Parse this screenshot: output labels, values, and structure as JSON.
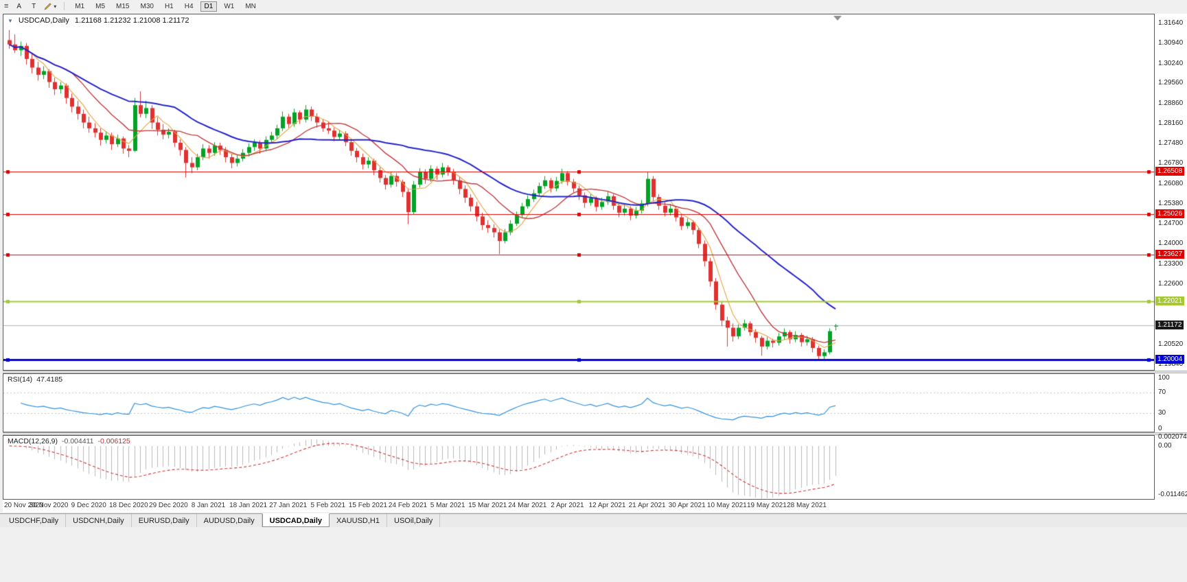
{
  "icons": {
    "menu": "≡",
    "dropdown": "▾",
    "one_click": "▼"
  },
  "toolbar": {
    "button_a": "A",
    "button_t": "T",
    "timeframes": [
      "M1",
      "M5",
      "M15",
      "M30",
      "H1",
      "H4",
      "D1",
      "W1",
      "MN"
    ],
    "active_timeframe": "D1"
  },
  "chart": {
    "symbol_title": "USDCAD,Daily",
    "ohlc_text": "1.21168 1.21232 1.21008 1.21172",
    "price_axis_labels": [
      "1.31640",
      "1.30940",
      "1.30240",
      "1.29560",
      "1.28860",
      "1.28160",
      "1.27480",
      "1.26780",
      "1.26080",
      "1.25380",
      "1.24700",
      "1.24000",
      "1.23300",
      "1.22600",
      "1.21920",
      "1.21220",
      "1.20520",
      "1.19840"
    ],
    "current_price": {
      "value": 1.21172,
      "label": "1.21172",
      "color": "#181818"
    },
    "hlines": [
      {
        "value": 1.26508,
        "label": "1.26508",
        "color": "#E00000",
        "width": 1
      },
      {
        "value": 1.25026,
        "label": "1.25026",
        "color": "#E00000",
        "width": 1
      },
      {
        "value": 1.23627,
        "label": "1.23627",
        "color": "#E00000",
        "width": 1
      },
      {
        "value": 1.22021,
        "label": "1.22021",
        "color": "#A6C832",
        "width": 2
      },
      {
        "value": 1.20004,
        "label": "1.20004",
        "color": "#0000D8",
        "width": 3
      }
    ],
    "date_labels": [
      "20 Nov 2020",
      "30 Nov 2020",
      "9 Dec 2020",
      "18 Dec 2020",
      "29 Dec 2020",
      "8 Jan 2021",
      "18 Jan 2021",
      "27 Jan 2021",
      "5 Feb 2021",
      "15 Feb 2021",
      "24 Feb 2021",
      "5 Mar 2021",
      "15 Mar 2021",
      "24 Mar 2021",
      "2 Apr 2021",
      "12 Apr 2021",
      "21 Apr 2021",
      "30 Apr 2021",
      "10 May 2021",
      "19 May 2021",
      "28 May 2021"
    ]
  },
  "rsi_panel": {
    "name_label": "RSI(14)",
    "value_label": "47.4185",
    "axis_labels": [
      {
        "text": "100",
        "value": 100
      },
      {
        "text": "70",
        "value": 70
      },
      {
        "text": "30",
        "value": 30
      },
      {
        "text": "0",
        "value": 0
      }
    ],
    "levels": [
      70,
      30
    ]
  },
  "macd_panel": {
    "name_label": "MACD(12,26,9)",
    "value1": "-0.004411",
    "value2": "-0.006125",
    "axis_labels": [
      {
        "text": "0.002074",
        "value": 0.002074
      },
      {
        "text": "0.00",
        "value": 0
      },
      {
        "text": "-0.011462",
        "value": -0.011462
      }
    ]
  },
  "tabs": {
    "items": [
      "USDCHF,Daily",
      "USDCNH,Daily",
      "EURUSD,Daily",
      "AUDUSD,Daily",
      "USDCAD,Daily",
      "XAUUSD,H1",
      "USOil,Daily"
    ],
    "active": "USDCAD,Daily"
  },
  "colors": {
    "bull": "#00A326",
    "bear": "#E03030",
    "rsi_line": "#2F8FDE",
    "rsi_level": "#C4C4C4",
    "macd_hist": "#B8B8B8",
    "macd_signal": "#D03030",
    "current_line": "#B4B4B4",
    "shift_marker": "#909090"
  },
  "chart_data": {
    "type": "candlestick",
    "symbol": "USDCAD",
    "timeframe": "Daily",
    "price_scale": {
      "max": 1.3194,
      "min": 1.1964
    },
    "x_tick_interval_bars": 7,
    "moving_averages": [
      {
        "name": "sma-fast",
        "period": 5,
        "color": "#E2A23C",
        "width": 1.1
      },
      {
        "name": "sma-mid",
        "period": 12,
        "color": "#C03A3A",
        "width": 1.4
      },
      {
        "name": "sma-slow",
        "period": 30,
        "color": "#2222C8",
        "width": 2
      }
    ],
    "indicators": {
      "rsi": {
        "period": 14,
        "last": 47.4185,
        "levels": [
          70,
          30
        ]
      },
      "macd": {
        "fast": 12,
        "slow": 26,
        "signal": 9,
        "last_macd": -0.004411,
        "last_signal": -0.006125,
        "scale_max": 0.0024,
        "scale_min": -0.0125
      }
    },
    "candles": [
      [
        1.3105,
        1.314,
        1.3075,
        1.309
      ],
      [
        1.309,
        1.3125,
        1.306,
        1.307
      ],
      [
        1.307,
        1.31,
        1.305,
        1.3085
      ],
      [
        1.3085,
        1.3095,
        1.302,
        1.304
      ],
      [
        1.304,
        1.306,
        1.299,
        1.301
      ],
      [
        1.301,
        1.303,
        1.2965,
        1.2985
      ],
      [
        1.2985,
        1.3015,
        1.297,
        1.2998
      ],
      [
        1.2998,
        1.3005,
        1.294,
        1.296
      ],
      [
        1.296,
        1.2975,
        1.2915,
        1.2935
      ],
      [
        1.2935,
        1.296,
        1.292,
        1.2948
      ],
      [
        1.2948,
        1.2955,
        1.2885,
        1.2905
      ],
      [
        1.2905,
        1.292,
        1.2855,
        1.2875
      ],
      [
        1.2875,
        1.2895,
        1.283,
        1.285
      ],
      [
        1.285,
        1.2865,
        1.28,
        1.282
      ],
      [
        1.282,
        1.284,
        1.2785,
        1.28
      ],
      [
        1.28,
        1.2818,
        1.2768,
        1.2785
      ],
      [
        1.2785,
        1.28,
        1.274,
        1.276
      ],
      [
        1.276,
        1.279,
        1.2748,
        1.2775
      ],
      [
        1.2775,
        1.2785,
        1.2725,
        1.2745
      ],
      [
        1.2745,
        1.2778,
        1.2735,
        1.2765
      ],
      [
        1.2765,
        1.2772,
        1.2712,
        1.273
      ],
      [
        1.273,
        1.2742,
        1.27,
        1.2722
      ],
      [
        1.2722,
        1.2905,
        1.2718,
        1.288
      ],
      [
        1.288,
        1.2928,
        1.2838,
        1.285
      ],
      [
        1.285,
        1.2895,
        1.2835,
        1.287
      ],
      [
        1.287,
        1.288,
        1.2798,
        1.282
      ],
      [
        1.282,
        1.2838,
        1.2775,
        1.2795
      ],
      [
        1.2795,
        1.2815,
        1.2762,
        1.2778
      ],
      [
        1.2778,
        1.28,
        1.2765,
        1.2788
      ],
      [
        1.2788,
        1.2795,
        1.2735,
        1.275
      ],
      [
        1.275,
        1.2762,
        1.2705,
        1.2725
      ],
      [
        1.2725,
        1.2735,
        1.263,
        1.268
      ],
      [
        1.268,
        1.27,
        1.2645,
        1.2665
      ],
      [
        1.2665,
        1.2712,
        1.2655,
        1.27
      ],
      [
        1.27,
        1.2745,
        1.269,
        1.273
      ],
      [
        1.273,
        1.2742,
        1.2695,
        1.2715
      ],
      [
        1.2715,
        1.2752,
        1.2705,
        1.274
      ],
      [
        1.274,
        1.275,
        1.2708,
        1.2725
      ],
      [
        1.2725,
        1.2735,
        1.2682,
        1.27
      ],
      [
        1.27,
        1.2712,
        1.2662,
        1.268
      ],
      [
        1.268,
        1.2708,
        1.2668,
        1.2695
      ],
      [
        1.2695,
        1.2728,
        1.2685,
        1.2715
      ],
      [
        1.2715,
        1.2748,
        1.2702,
        1.2735
      ],
      [
        1.2735,
        1.2762,
        1.2722,
        1.275
      ],
      [
        1.275,
        1.2758,
        1.2712,
        1.273
      ],
      [
        1.273,
        1.2772,
        1.272,
        1.276
      ],
      [
        1.276,
        1.2788,
        1.2748,
        1.2775
      ],
      [
        1.2775,
        1.2812,
        1.2762,
        1.28
      ],
      [
        1.28,
        1.2858,
        1.279,
        1.284
      ],
      [
        1.284,
        1.285,
        1.2802,
        1.2815
      ],
      [
        1.2815,
        1.2868,
        1.2805,
        1.2855
      ],
      [
        1.2855,
        1.2862,
        1.2815,
        1.283
      ],
      [
        1.283,
        1.288,
        1.282,
        1.2865
      ],
      [
        1.2865,
        1.2875,
        1.2825,
        1.284
      ],
      [
        1.284,
        1.2852,
        1.2802,
        1.282
      ],
      [
        1.282,
        1.2832,
        1.2788,
        1.28
      ],
      [
        1.28,
        1.2822,
        1.278,
        1.2792
      ],
      [
        1.2792,
        1.2802,
        1.2755,
        1.277
      ],
      [
        1.277,
        1.2795,
        1.2758,
        1.2782
      ],
      [
        1.2782,
        1.279,
        1.2738,
        1.2752
      ],
      [
        1.2752,
        1.2762,
        1.2705,
        1.2722
      ],
      [
        1.2722,
        1.2732,
        1.2682,
        1.27
      ],
      [
        1.27,
        1.2712,
        1.2658,
        1.2675
      ],
      [
        1.2675,
        1.27,
        1.2662,
        1.2688
      ],
      [
        1.2688,
        1.2695,
        1.2638,
        1.2655
      ],
      [
        1.2655,
        1.2665,
        1.2612,
        1.2628
      ],
      [
        1.2628,
        1.2638,
        1.2588,
        1.2605
      ],
      [
        1.2605,
        1.2648,
        1.2595,
        1.2635
      ],
      [
        1.2635,
        1.2645,
        1.2598,
        1.2615
      ],
      [
        1.2615,
        1.2622,
        1.2562,
        1.258
      ],
      [
        1.258,
        1.2592,
        1.2468,
        1.251
      ],
      [
        1.251,
        1.2618,
        1.2502,
        1.2605
      ],
      [
        1.2605,
        1.2662,
        1.2595,
        1.265
      ],
      [
        1.265,
        1.2658,
        1.2608,
        1.2625
      ],
      [
        1.2625,
        1.2672,
        1.2615,
        1.266
      ],
      [
        1.266,
        1.2668,
        1.2622,
        1.264
      ],
      [
        1.264,
        1.268,
        1.263,
        1.2665
      ],
      [
        1.2665,
        1.2672,
        1.2635,
        1.265
      ],
      [
        1.265,
        1.266,
        1.2605,
        1.262
      ],
      [
        1.262,
        1.2632,
        1.2572,
        1.259
      ],
      [
        1.259,
        1.2602,
        1.2542,
        1.256
      ],
      [
        1.256,
        1.2572,
        1.2512,
        1.253
      ],
      [
        1.253,
        1.2545,
        1.2478,
        1.2495
      ],
      [
        1.2495,
        1.2508,
        1.2448,
        1.2465
      ],
      [
        1.2465,
        1.2482,
        1.2438,
        1.2455
      ],
      [
        1.2455,
        1.2468,
        1.2422,
        1.244
      ],
      [
        1.244,
        1.245,
        1.2365,
        1.241
      ],
      [
        1.241,
        1.2452,
        1.2402,
        1.244
      ],
      [
        1.244,
        1.2482,
        1.243,
        1.247
      ],
      [
        1.247,
        1.2512,
        1.2462,
        1.25
      ],
      [
        1.25,
        1.2542,
        1.2492,
        1.253
      ],
      [
        1.253,
        1.2568,
        1.2522,
        1.2555
      ],
      [
        1.2555,
        1.2588,
        1.2545,
        1.2575
      ],
      [
        1.2575,
        1.2612,
        1.2565,
        1.26
      ],
      [
        1.26,
        1.2635,
        1.259,
        1.262
      ],
      [
        1.262,
        1.2628,
        1.2578,
        1.2592
      ],
      [
        1.2592,
        1.2632,
        1.2582,
        1.2618
      ],
      [
        1.2618,
        1.266,
        1.2608,
        1.2645
      ],
      [
        1.2645,
        1.2652,
        1.2602,
        1.2615
      ],
      [
        1.2615,
        1.2625,
        1.2578,
        1.2592
      ],
      [
        1.2592,
        1.2602,
        1.2552,
        1.2568
      ],
      [
        1.2568,
        1.2578,
        1.2525,
        1.2542
      ],
      [
        1.2542,
        1.2572,
        1.2532,
        1.2558
      ],
      [
        1.2558,
        1.2565,
        1.2512,
        1.2528
      ],
      [
        1.2528,
        1.256,
        1.2518,
        1.2545
      ],
      [
        1.2545,
        1.258,
        1.2535,
        1.2565
      ],
      [
        1.2565,
        1.2572,
        1.2518,
        1.2532
      ],
      [
        1.2532,
        1.2542,
        1.2492,
        1.2508
      ],
      [
        1.2508,
        1.2535,
        1.2498,
        1.2522
      ],
      [
        1.2522,
        1.253,
        1.2482,
        1.2498
      ],
      [
        1.2498,
        1.2528,
        1.2488,
        1.2515
      ],
      [
        1.2515,
        1.2552,
        1.2505,
        1.254
      ],
      [
        1.254,
        1.265,
        1.253,
        1.2625
      ],
      [
        1.2625,
        1.2635,
        1.2548,
        1.2562
      ],
      [
        1.2562,
        1.2572,
        1.2518,
        1.2532
      ],
      [
        1.2532,
        1.2545,
        1.2495,
        1.2508
      ],
      [
        1.2508,
        1.2538,
        1.2498,
        1.2522
      ],
      [
        1.2522,
        1.253,
        1.2478,
        1.2492
      ],
      [
        1.2492,
        1.2505,
        1.2448,
        1.2462
      ],
      [
        1.2462,
        1.2488,
        1.2452,
        1.2475
      ],
      [
        1.2475,
        1.2482,
        1.2432,
        1.2448
      ],
      [
        1.2448,
        1.2458,
        1.2385,
        1.24
      ],
      [
        1.24,
        1.2412,
        1.2322,
        1.234
      ],
      [
        1.234,
        1.2352,
        1.2252,
        1.227
      ],
      [
        1.227,
        1.2282,
        1.2172,
        1.219
      ],
      [
        1.219,
        1.2202,
        1.2115,
        1.2135
      ],
      [
        1.2135,
        1.2148,
        1.2045,
        1.211
      ],
      [
        1.211,
        1.2125,
        1.2062,
        1.208
      ],
      [
        1.208,
        1.2122,
        1.207,
        1.211
      ],
      [
        1.211,
        1.2138,
        1.21,
        1.2125
      ],
      [
        1.2125,
        1.2132,
        1.2082,
        1.2095
      ],
      [
        1.2095,
        1.2105,
        1.2058,
        1.2075
      ],
      [
        1.2075,
        1.2082,
        1.2013,
        1.2045
      ],
      [
        1.2045,
        1.2078,
        1.2035,
        1.2065
      ],
      [
        1.2065,
        1.2072,
        1.2042,
        1.2058
      ],
      [
        1.2058,
        1.2092,
        1.2048,
        1.208
      ],
      [
        1.208,
        1.2108,
        1.2068,
        1.2095
      ],
      [
        1.2095,
        1.2102,
        1.2055,
        1.207
      ],
      [
        1.207,
        1.2098,
        1.206,
        1.2085
      ],
      [
        1.2085,
        1.2092,
        1.2045,
        1.206
      ],
      [
        1.206,
        1.2082,
        1.2048,
        1.207
      ],
      [
        1.207,
        1.2078,
        1.2025,
        1.204
      ],
      [
        1.204,
        1.2048,
        1.1998,
        1.2012
      ],
      [
        1.2012,
        1.2035,
        1.2,
        1.2025
      ],
      [
        1.2025,
        1.2108,
        1.2018,
        1.2098
      ],
      [
        1.21168,
        1.21232,
        1.21008,
        1.21172
      ]
    ]
  }
}
